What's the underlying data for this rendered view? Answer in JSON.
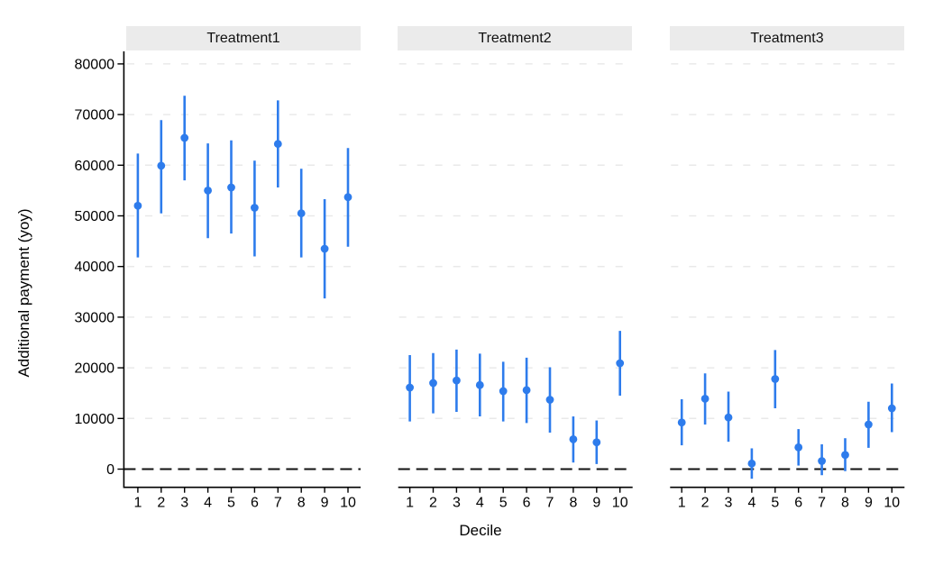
{
  "chart_data": {
    "type": "scatter",
    "subtype": "point-estimates-with-95ci-errorbars",
    "title": "",
    "xlabel": "Decile",
    "ylabel": "Additional payment (yoy)",
    "categories": [
      1,
      2,
      3,
      4,
      5,
      6,
      7,
      8,
      9,
      10
    ],
    "yticks": [
      0,
      10000,
      20000,
      30000,
      40000,
      50000,
      60000,
      70000,
      80000
    ],
    "ytick_labels": [
      "0",
      "10000",
      "20000",
      "30000",
      "40000",
      "50000",
      "60000",
      "70000",
      "80000"
    ],
    "ylim": [
      -3600,
      82000
    ],
    "grid": "horizontal-dashed",
    "legend": "none",
    "zero_reference_line": 0,
    "panels": [
      {
        "label": "Treatment1",
        "estimates": [
          52000,
          59900,
          65400,
          55000,
          55600,
          51600,
          64200,
          50500,
          43500,
          53700
        ],
        "ci_low": [
          41800,
          50500,
          57000,
          45600,
          46500,
          42000,
          55600,
          41800,
          33700,
          43900
        ],
        "ci_high": [
          62300,
          68900,
          73700,
          64300,
          64900,
          60900,
          72800,
          59300,
          53300,
          63400
        ]
      },
      {
        "label": "Treatment2",
        "estimates": [
          16100,
          17000,
          17500,
          16600,
          15400,
          15600,
          13700,
          5900,
          5300,
          20900
        ],
        "ci_low": [
          9400,
          11000,
          11300,
          10400,
          9400,
          9100,
          7200,
          1300,
          1000,
          14500
        ],
        "ci_high": [
          22500,
          22900,
          23600,
          22800,
          21200,
          22000,
          20100,
          10400,
          9600,
          27300
        ]
      },
      {
        "label": "Treatment3",
        "estimates": [
          9200,
          13900,
          10200,
          1100,
          17800,
          4300,
          1600,
          2800,
          8800,
          12000
        ],
        "ci_low": [
          4700,
          8800,
          5400,
          -1900,
          12000,
          700,
          -1200,
          -400,
          4200,
          7300
        ],
        "ci_high": [
          13800,
          18900,
          15300,
          4100,
          23500,
          7900,
          4900,
          6100,
          13300,
          16900
        ]
      }
    ],
    "colors": {
      "marker": "#2e7cec",
      "ci_line": "#2e7cec",
      "strip_bg": "#ebebeb",
      "gridline": "#e9e9e9",
      "axis": "#000000",
      "zero_line": "#111111",
      "background": "#ffffff"
    }
  }
}
